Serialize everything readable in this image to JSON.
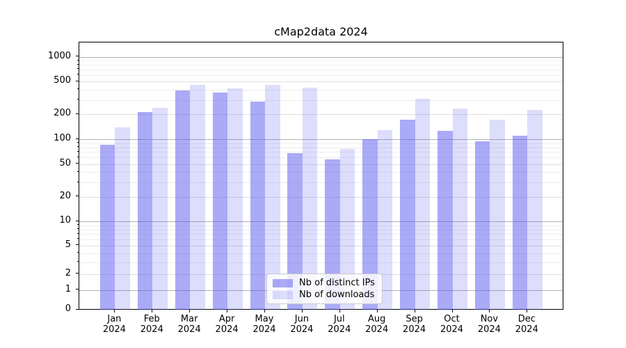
{
  "title": "cMap2data 2024",
  "chart_data": {
    "type": "bar",
    "title": "cMap2data 2024",
    "categories": [
      "Jan",
      "Feb",
      "Mar",
      "Apr",
      "May",
      "Jun",
      "Jul",
      "Aug",
      "Sep",
      "Oct",
      "Nov",
      "Dec"
    ],
    "year_label": "2024",
    "series": [
      {
        "name": "Nb of distinct IPs",
        "color": "rgba(85,85,240,0.5)",
        "values": [
          85,
          215,
          390,
          370,
          285,
          68,
          57,
          100,
          172,
          127,
          95,
          110
        ]
      },
      {
        "name": "Nb of downloads",
        "color": "rgba(85,85,240,0.2)",
        "values": [
          140,
          238,
          460,
          410,
          455,
          425,
          77,
          130,
          310,
          237,
          172,
          225
        ]
      }
    ],
    "xlabel": "",
    "ylabel": "",
    "y_axis": {
      "scale": "symlog",
      "ticks": [
        0,
        1,
        2,
        5,
        10,
        20,
        50,
        100,
        200,
        500,
        1000
      ],
      "minor_ticks": [
        3,
        4,
        6,
        7,
        8,
        9,
        30,
        40,
        60,
        70,
        80,
        90,
        300,
        400,
        600,
        700,
        800,
        900
      ],
      "ylim": [
        0,
        1500
      ],
      "grid": "on"
    },
    "legend": {
      "position": "lower center",
      "entries": [
        "Nb of distinct IPs",
        "Nb of downloads"
      ]
    }
  }
}
